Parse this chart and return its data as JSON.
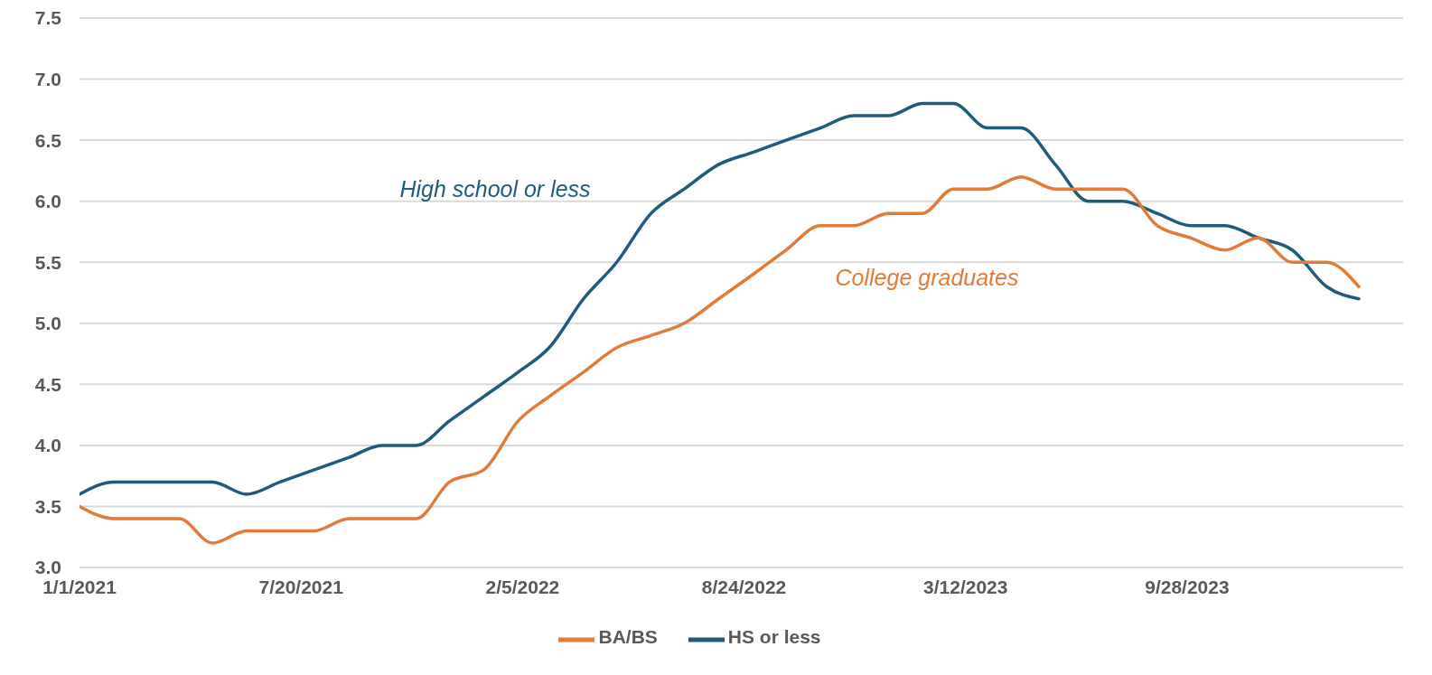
{
  "chart_data": {
    "type": "line",
    "x": [
      "2021-01",
      "2021-02",
      "2021-03",
      "2021-04",
      "2021-05",
      "2021-06",
      "2021-07",
      "2021-08",
      "2021-09",
      "2021-10",
      "2021-11",
      "2021-12",
      "2022-01",
      "2022-02",
      "2022-03",
      "2022-04",
      "2022-05",
      "2022-06",
      "2022-07",
      "2022-08",
      "2022-09",
      "2022-10",
      "2022-11",
      "2022-12",
      "2023-01",
      "2023-02",
      "2023-03",
      "2023-04",
      "2023-05",
      "2023-06",
      "2023-07",
      "2023-08",
      "2023-09",
      "2023-10",
      "2023-11",
      "2023-12",
      "2024-01",
      "2024-02",
      "2024-03"
    ],
    "series": [
      {
        "name": "HS or less",
        "color": "#1f5b7a",
        "values": [
          3.6,
          3.7,
          3.7,
          3.7,
          3.7,
          3.6,
          3.7,
          3.8,
          3.9,
          4.0,
          4.0,
          4.2,
          4.4,
          4.6,
          4.8,
          5.2,
          5.5,
          5.9,
          6.1,
          6.3,
          6.4,
          6.5,
          6.6,
          6.7,
          6.7,
          6.8,
          6.8,
          6.6,
          6.6,
          6.3,
          6.0,
          6.0,
          5.9,
          5.8,
          5.8,
          5.7,
          5.6,
          5.3,
          5.2
        ]
      },
      {
        "name": "BA/BS",
        "color": "#e07b39",
        "values": [
          3.5,
          3.4,
          3.4,
          3.4,
          3.2,
          3.3,
          3.3,
          3.3,
          3.4,
          3.4,
          3.4,
          3.7,
          3.8,
          4.2,
          4.4,
          4.6,
          4.8,
          4.9,
          5.0,
          5.2,
          5.4,
          5.6,
          5.8,
          5.8,
          5.9,
          5.9,
          6.1,
          6.1,
          6.2,
          6.1,
          6.1,
          6.1,
          5.8,
          5.7,
          5.6,
          5.7,
          5.5,
          5.5,
          5.3
        ]
      }
    ],
    "annotations": [
      "High school or less",
      "College graduates"
    ],
    "xlim": [
      "2021-01-01",
      "2024-04-10"
    ],
    "xticks": [
      {
        "value": "2021-01-01",
        "label": "1/1/2021"
      },
      {
        "value": "2021-07-20",
        "label": "7/20/2021"
      },
      {
        "value": "2022-02-05",
        "label": "2/5/2022"
      },
      {
        "value": "2022-08-24",
        "label": "8/24/2022"
      },
      {
        "value": "2023-03-12",
        "label": "3/12/2023"
      },
      {
        "value": "2023-09-28",
        "label": "9/28/2023"
      }
    ],
    "ylim": [
      3.0,
      7.5
    ],
    "yticks": [
      {
        "value": 3.0,
        "label": "3.0"
      },
      {
        "value": 3.5,
        "label": "3.5"
      },
      {
        "value": 4.0,
        "label": "4.0"
      },
      {
        "value": 4.5,
        "label": "4.5"
      },
      {
        "value": 5.0,
        "label": "5.0"
      },
      {
        "value": 5.5,
        "label": "5.5"
      },
      {
        "value": 6.0,
        "label": "6.0"
      },
      {
        "value": 6.5,
        "label": "6.5"
      },
      {
        "value": 7.0,
        "label": "7.0"
      },
      {
        "value": 7.5,
        "label": "7.5"
      }
    ],
    "grid": "y",
    "legend": "bottom",
    "marker": "none",
    "line_style": "solid"
  }
}
